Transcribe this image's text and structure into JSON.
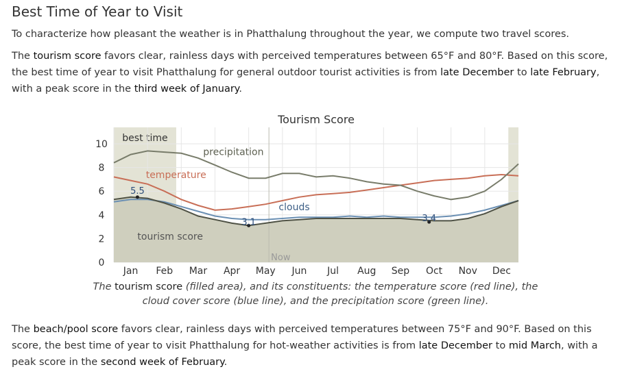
{
  "page": {
    "title": "Best Time of Year to Visit",
    "intro": "To characterize how pleasant the weather is in Phatthalung throughout the year, we compute two travel scores.",
    "tourism_paragraph": [
      {
        "t": "The ",
        "b": false
      },
      {
        "t": "tourism score",
        "b": true
      },
      {
        "t": " favors clear, rainless days with perceived temperatures between 65°F and 80°F. Based on this score, the best time of year to visit Phatthalung for general outdoor tourist activities is from ",
        "b": false
      },
      {
        "t": "late December",
        "b": true
      },
      {
        "t": " to ",
        "b": false
      },
      {
        "t": "late February",
        "b": true
      },
      {
        "t": ", with a peak score in the ",
        "b": false
      },
      {
        "t": "third week of January",
        "b": true
      },
      {
        "t": ".",
        "b": false
      }
    ],
    "beach_paragraph": [
      {
        "t": "The ",
        "b": false
      },
      {
        "t": "beach/pool score",
        "b": true
      },
      {
        "t": " favors clear, rainless days with perceived temperatures between 75°F and 90°F. Based on this score, the best time of year to visit Phatthalung for hot-weather activities is from ",
        "b": false
      },
      {
        "t": "late December",
        "b": true
      },
      {
        "t": " to ",
        "b": false
      },
      {
        "t": "mid March",
        "b": true
      },
      {
        "t": ", with a peak score in the ",
        "b": false
      },
      {
        "t": "second week of February",
        "b": true
      },
      {
        "t": ".",
        "b": false
      }
    ],
    "caption": "The tourism score (filled area), and its constituents: the temperature score (red line), the cloud cover score (blue line), and the precipitation score (green line)."
  },
  "chart_data": {
    "type": "area",
    "title": "Tourism Score",
    "x_unit": "month (fractional, 0 = start of Jan)",
    "ylim": [
      0,
      10
    ],
    "yticks": [
      0,
      2,
      4,
      6,
      8,
      10
    ],
    "xticks": [
      "Jan",
      "Feb",
      "Mar",
      "Apr",
      "May",
      "Jun",
      "Jul",
      "Aug",
      "Sep",
      "Oct",
      "Nov",
      "Dec"
    ],
    "grid": true,
    "best_time_label": "best time",
    "best_time_ranges": [
      [
        0,
        1.85
      ],
      [
        11.7,
        12
      ]
    ],
    "now_label": "Now",
    "now_x": 4.6,
    "colors": {
      "area": "#cfcfbe",
      "band": "#e3e3d5",
      "temperature": "#c86e56",
      "clouds": "#6a8fb3",
      "precipitation": "#787c6a",
      "grid": "#e6e6e6"
    },
    "series": [
      {
        "name": "tourism score",
        "kind": "area",
        "x": [
          0,
          0.5,
          1,
          1.5,
          2,
          2.5,
          3,
          3.5,
          4,
          4.5,
          5,
          5.5,
          6,
          6.5,
          7,
          7.5,
          8,
          8.5,
          9,
          9.5,
          10,
          10.5,
          11,
          11.5,
          12
        ],
        "values": [
          5.3,
          5.5,
          5.4,
          5.0,
          4.5,
          3.9,
          3.6,
          3.3,
          3.1,
          3.3,
          3.5,
          3.6,
          3.7,
          3.7,
          3.7,
          3.7,
          3.7,
          3.7,
          3.6,
          3.5,
          3.5,
          3.7,
          4.1,
          4.7,
          5.2
        ],
        "peak": {
          "x": 0.7,
          "value": 5.5,
          "label": "5.5"
        },
        "min": {
          "x": 4.0,
          "value": 3.1,
          "label": "3.1"
        },
        "secondary": {
          "x": 9.35,
          "value": 3.4,
          "label": "3.4"
        }
      },
      {
        "name": "temperature",
        "kind": "line",
        "x": [
          0,
          0.5,
          1,
          1.5,
          2,
          2.5,
          3,
          3.5,
          4,
          4.5,
          5,
          5.5,
          6,
          6.5,
          7,
          7.5,
          8,
          8.5,
          9,
          9.5,
          10,
          10.5,
          11,
          11.5,
          12
        ],
        "values": [
          7.2,
          6.9,
          6.6,
          6.0,
          5.3,
          4.8,
          4.4,
          4.5,
          4.7,
          4.9,
          5.2,
          5.5,
          5.7,
          5.8,
          5.9,
          6.1,
          6.3,
          6.5,
          6.7,
          6.9,
          7.0,
          7.1,
          7.3,
          7.4,
          7.3
        ]
      },
      {
        "name": "clouds",
        "kind": "line",
        "x": [
          0,
          0.5,
          1,
          1.5,
          2,
          2.5,
          3,
          3.5,
          4,
          4.5,
          5,
          5.5,
          6,
          6.5,
          7,
          7.5,
          8,
          8.5,
          9,
          9.5,
          10,
          10.5,
          11,
          11.5,
          12
        ],
        "values": [
          5.1,
          5.3,
          5.3,
          5.1,
          4.7,
          4.3,
          3.9,
          3.7,
          3.6,
          3.6,
          3.7,
          3.8,
          3.8,
          3.8,
          3.9,
          3.8,
          3.9,
          3.8,
          3.8,
          3.8,
          3.9,
          4.1,
          4.4,
          4.8,
          5.2
        ],
        "label_at": {
          "x": 5.35,
          "value": 4.4,
          "label": "clouds"
        }
      },
      {
        "name": "precipitation",
        "kind": "line",
        "x": [
          0,
          0.5,
          1,
          1.5,
          2,
          2.5,
          3,
          3.5,
          4,
          4.5,
          5,
          5.5,
          6,
          6.5,
          7,
          7.5,
          8,
          8.5,
          9,
          9.5,
          10,
          10.5,
          11,
          11.5,
          12
        ],
        "values": [
          8.4,
          9.1,
          9.4,
          9.3,
          9.2,
          8.8,
          8.2,
          7.6,
          7.1,
          7.1,
          7.5,
          7.5,
          7.2,
          7.3,
          7.1,
          6.8,
          6.6,
          6.5,
          6.0,
          5.6,
          5.3,
          5.5,
          6.0,
          7.0,
          8.3
        ]
      }
    ],
    "line_labels": [
      {
        "series": "precipitation",
        "text": "precipitation",
        "x": 2.65,
        "value": 9.05
      },
      {
        "series": "temperature",
        "text": "temperature",
        "x": 0.95,
        "value": 7.1
      },
      {
        "series": "tourism score",
        "text": "tourism score",
        "x": 0.7,
        "value": 1.9
      }
    ]
  }
}
